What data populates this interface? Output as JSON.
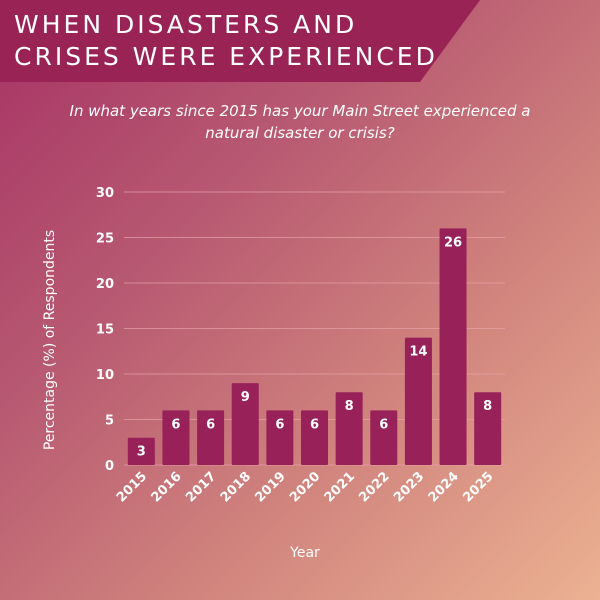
{
  "header": {
    "title": "When Disasters and Crises Were Experienced"
  },
  "subtitle": "In what years since 2015 has your Main Street experienced a natural disaster or crisis?",
  "colors": {
    "bar": "#98215a",
    "banner": "#9a2356",
    "gridline": "#e7a3a8",
    "text": "#ffffff"
  },
  "chart_data": {
    "type": "bar",
    "title": "When Disasters and Crises Were Experienced",
    "subtitle": "In what years since 2015 has your Main Street experienced a natural disaster or crisis?",
    "categories": [
      "2015",
      "2016",
      "2017",
      "2018",
      "2019",
      "2020",
      "2021",
      "2022",
      "2023",
      "2024",
      "2025"
    ],
    "values": [
      3,
      6,
      6,
      9,
      6,
      6,
      8,
      6,
      14,
      26,
      8
    ],
    "data_labels": [
      "3",
      "6",
      "6",
      "9",
      "6",
      "6",
      "8",
      "6",
      "14",
      "26",
      "8"
    ],
    "xlabel": "Year",
    "ylabel": "Percentage (%) of Respondents",
    "ylim": [
      0,
      30
    ],
    "yticks": [
      0,
      5,
      10,
      15,
      20,
      25,
      30
    ],
    "ytick_labels": [
      "0",
      "5",
      "10",
      "15",
      "20",
      "25",
      "30"
    ],
    "grid": true,
    "legend": "none"
  }
}
